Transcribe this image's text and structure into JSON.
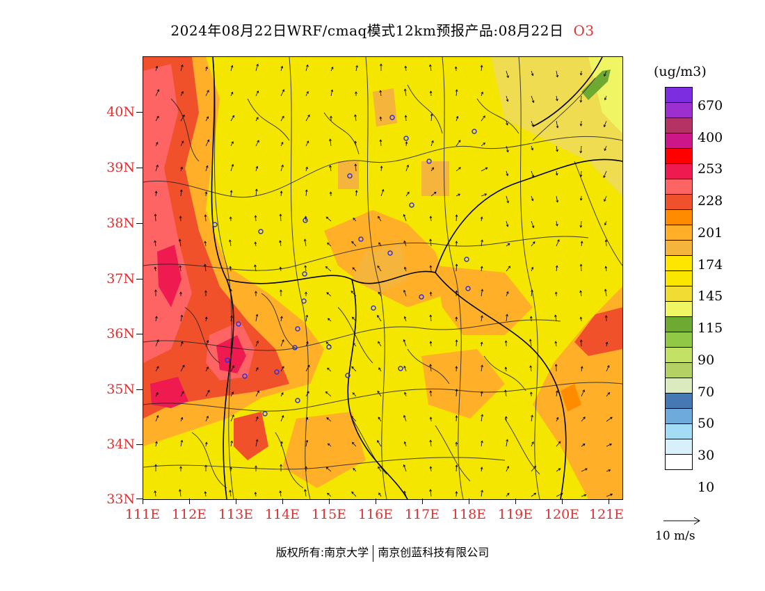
{
  "title": {
    "text": "2024年08月22日WRF/cmaq模式12km预报产品:08月22日",
    "variable": "O3"
  },
  "map": {
    "lat_labels": [
      "40N",
      "39N",
      "38N",
      "37N",
      "36N",
      "35N",
      "34N",
      "33N"
    ],
    "lon_labels": [
      "111E",
      "112E",
      "113E",
      "114E",
      "115E",
      "116E",
      "117E",
      "118E",
      "119E",
      "120E",
      "121E"
    ],
    "base_color": "#f5e600"
  },
  "legend": {
    "unit": "(ug/m3)",
    "colors": [
      "#7d2de0",
      "#9b30cf",
      "#b43264",
      "#cd1687",
      "#ff0000",
      "#ee1a50",
      "#ff6464",
      "#f0502a",
      "#ff8c00",
      "#ffaf28",
      "#f5b43c",
      "#ffe600",
      "#fae600",
      "#f0dc32",
      "#f0f564",
      "#6eaa32",
      "#91c846",
      "#c3e164",
      "#b4d264",
      "#dceac0",
      "#4678b4",
      "#6eaadc",
      "#a5dcf5",
      "#d7f0fa",
      "#ffffff"
    ],
    "labels": [
      "670",
      "400",
      "253",
      "228",
      "201",
      "174",
      "145",
      "115",
      "90",
      "70",
      "50",
      "30",
      "10"
    ],
    "vector_ref": "10 m/s"
  },
  "footer": {
    "copyright_left": "版权所有:南京大学",
    "copyright_right": "南京创蓝科技有限公司"
  }
}
